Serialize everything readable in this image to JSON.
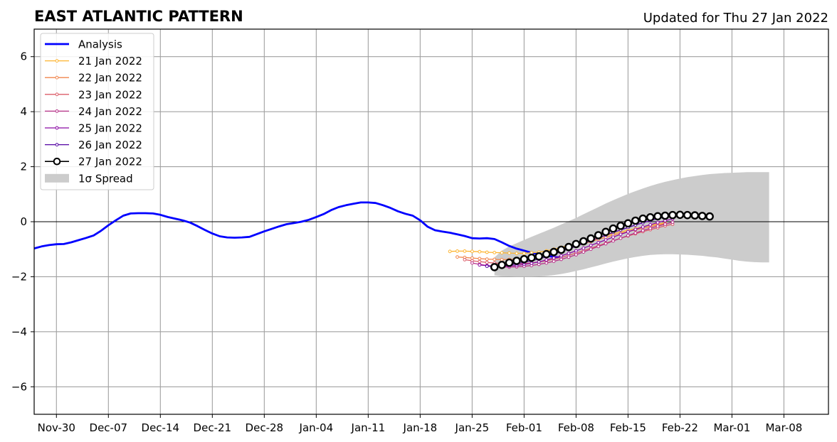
{
  "header": {
    "title": "EAST ATLANTIC PATTERN",
    "updated": "Updated for Thu 27 Jan 2022"
  },
  "chart_data": {
    "type": "line",
    "title": "EAST ATLANTIC PATTERN",
    "subtitle": "Updated for Thu 27 Jan 2022",
    "x_start_date": "2021-11-27",
    "xlim": [
      "2021-11-27",
      "2022-03-14"
    ],
    "ylim": [
      -7,
      7
    ],
    "yticks": [
      -6,
      -4,
      -2,
      0,
      2,
      4,
      6
    ],
    "ytick_labels": [
      "−6",
      "−4",
      "−2",
      "0",
      "2",
      "4",
      "6"
    ],
    "xticks": [
      "2021-11-30",
      "2021-12-07",
      "2021-12-14",
      "2021-12-21",
      "2021-12-28",
      "2022-01-04",
      "2022-01-11",
      "2022-01-18",
      "2022-01-25",
      "2022-02-01",
      "2022-02-08",
      "2022-02-15",
      "2022-02-22",
      "2022-03-01",
      "2022-03-08"
    ],
    "xtick_labels": [
      "Nov-30",
      "Dec-07",
      "Dec-14",
      "Dec-21",
      "Dec-28",
      "Jan-04",
      "Jan-11",
      "Jan-18",
      "Jan-25",
      "Feb-01",
      "Feb-08",
      "Feb-15",
      "Feb-22",
      "Mar-01",
      "Mar-08"
    ],
    "grid": true,
    "legend_position": "top-left",
    "colors": {
      "analysis": "#0000ff",
      "spread": "#cccccc",
      "zero_line": "#000000"
    },
    "legend": [
      {
        "label": "Analysis",
        "kind": "thick",
        "color": "#0000ff"
      },
      {
        "label": "21 Jan 2022",
        "kind": "small",
        "color": "#fdb42f"
      },
      {
        "label": "22 Jan 2022",
        "kind": "small",
        "color": "#f1844b"
      },
      {
        "label": "23 Jan 2022",
        "kind": "small",
        "color": "#db5c68"
      },
      {
        "label": "24 Jan 2022",
        "kind": "small",
        "color": "#b83289"
      },
      {
        "label": "25 Jan 2022",
        "kind": "small",
        "color": "#8b0aa5"
      },
      {
        "label": "26 Jan 2022",
        "kind": "small",
        "color": "#5302a3"
      },
      {
        "label": "27 Jan 2022",
        "kind": "big",
        "color": "#000000"
      },
      {
        "label": "1σ Spread",
        "kind": "patch",
        "color": "#cccccc"
      }
    ],
    "analysis": {
      "name": "Analysis",
      "start": "2021-11-27",
      "values": [
        -0.97,
        -0.9,
        -0.85,
        -0.82,
        -0.81,
        -0.75,
        -0.67,
        -0.59,
        -0.5,
        -0.33,
        -0.13,
        0.05,
        0.22,
        0.3,
        0.31,
        0.31,
        0.3,
        0.25,
        0.17,
        0.11,
        0.05,
        -0.03,
        -0.16,
        -0.3,
        -0.43,
        -0.53,
        -0.57,
        -0.58,
        -0.57,
        -0.55,
        -0.45,
        -0.35,
        -0.26,
        -0.17,
        -0.09,
        -0.05,
        0.0,
        0.07,
        0.17,
        0.28,
        0.42,
        0.53,
        0.6,
        0.65,
        0.7,
        0.7,
        0.68,
        0.6,
        0.5,
        0.38,
        0.29,
        0.22,
        0.05,
        -0.18,
        -0.31,
        -0.36,
        -0.4,
        -0.46,
        -0.52,
        -0.6,
        -0.61,
        -0.6,
        -0.63,
        -0.75,
        -0.88,
        -0.98,
        -1.05,
        -1.13,
        -1.18,
        -1.23,
        -1.28,
        -1.3
      ]
    },
    "forecasts": [
      {
        "name": "21 Jan 2022",
        "start": "2022-01-22",
        "color": "#fdb42f",
        "values": [
          -1.08,
          -1.07,
          -1.07,
          -1.08,
          -1.09,
          -1.11,
          -1.12,
          -1.13,
          -1.14,
          -1.15,
          -1.15,
          -1.13,
          -1.11,
          -1.06,
          -1.0,
          -0.93,
          -0.86,
          -0.79,
          -0.72,
          -0.65,
          -0.58,
          -0.51,
          -0.44,
          -0.37,
          -0.31,
          -0.25,
          -0.19,
          -0.13,
          -0.08,
          -0.04
        ]
      },
      {
        "name": "22 Jan 2022",
        "start": "2022-01-23",
        "color": "#f1844b",
        "values": [
          -1.28,
          -1.3,
          -1.32,
          -1.34,
          -1.36,
          -1.37,
          -1.38,
          -1.37,
          -1.36,
          -1.33,
          -1.28,
          -1.23,
          -1.17,
          -1.1,
          -1.03,
          -0.95,
          -0.88,
          -0.8,
          -0.72,
          -0.64,
          -0.57,
          -0.49,
          -0.42,
          -0.36,
          -0.3,
          -0.24,
          -0.18,
          -0.12,
          -0.07
        ]
      },
      {
        "name": "23 Jan 2022",
        "start": "2022-01-24",
        "color": "#db5c68",
        "values": [
          -1.38,
          -1.42,
          -1.45,
          -1.48,
          -1.5,
          -1.52,
          -1.53,
          -1.53,
          -1.52,
          -1.5,
          -1.46,
          -1.42,
          -1.36,
          -1.3,
          -1.22,
          -1.14,
          -1.05,
          -0.96,
          -0.87,
          -0.78,
          -0.69,
          -0.6,
          -0.52,
          -0.44,
          -0.36,
          -0.29,
          -0.22,
          -0.15,
          -0.09
        ]
      },
      {
        "name": "24 Jan 2022",
        "start": "2022-01-25",
        "color": "#b83289",
        "values": [
          -1.5,
          -1.55,
          -1.59,
          -1.62,
          -1.64,
          -1.65,
          -1.64,
          -1.62,
          -1.59,
          -1.55,
          -1.5,
          -1.44,
          -1.37,
          -1.29,
          -1.2,
          -1.1,
          -1.0,
          -0.9,
          -0.8,
          -0.7,
          -0.6,
          -0.5,
          -0.41,
          -0.32,
          -0.24,
          -0.16,
          -0.09,
          -0.02
        ]
      },
      {
        "name": "25 Jan 2022",
        "start": "2022-01-26",
        "color": "#8b0aa5",
        "values": [
          -1.57,
          -1.6,
          -1.62,
          -1.62,
          -1.61,
          -1.59,
          -1.55,
          -1.51,
          -1.46,
          -1.39,
          -1.32,
          -1.24,
          -1.15,
          -1.06,
          -0.96,
          -0.86,
          -0.76,
          -0.66,
          -0.56,
          -0.46,
          -0.37,
          -0.28,
          -0.19,
          -0.11,
          -0.03,
          0.04,
          0.1
        ]
      },
      {
        "name": "26 Jan 2022",
        "start": "2022-01-27",
        "color": "#5302a3",
        "values": [
          -1.62,
          -1.62,
          -1.6,
          -1.57,
          -1.53,
          -1.48,
          -1.42,
          -1.35,
          -1.27,
          -1.18,
          -1.09,
          -0.99,
          -0.89,
          -0.79,
          -0.69,
          -0.59,
          -0.49,
          -0.39,
          -0.3,
          -0.21,
          -0.12,
          -0.04,
          0.04,
          0.11,
          0.17
        ]
      }
    ],
    "forecast_main": {
      "name": "27 Jan 2022",
      "start": "2022-01-28",
      "color": "#000000",
      "values": [
        -1.65,
        -1.57,
        -1.49,
        -1.42,
        -1.36,
        -1.31,
        -1.26,
        -1.18,
        -1.1,
        -1.02,
        -0.92,
        -0.81,
        -0.71,
        -0.61,
        -0.49,
        -0.37,
        -0.25,
        -0.15,
        -0.06,
        0.04,
        0.11,
        0.16,
        0.2,
        0.22,
        0.24,
        0.25,
        0.24,
        0.23,
        0.21,
        0.19
      ]
    },
    "spread": {
      "label": "1σ Spread",
      "start": "2022-01-28",
      "upper": [
        -1.3,
        -1.05,
        -0.9,
        -0.78,
        -0.66,
        -0.55,
        -0.44,
        -0.33,
        -0.22,
        -0.1,
        0.02,
        0.14,
        0.27,
        0.4,
        0.53,
        0.66,
        0.78,
        0.9,
        1.01,
        1.11,
        1.21,
        1.3,
        1.38,
        1.45,
        1.51,
        1.57,
        1.62,
        1.66,
        1.7,
        1.73,
        1.75,
        1.77,
        1.78,
        1.79,
        1.8,
        1.8,
        1.8,
        1.8
      ],
      "lower": [
        -1.95,
        -1.98,
        -1.99,
        -2.0,
        -2.0,
        -2.0,
        -1.99,
        -1.97,
        -1.94,
        -1.9,
        -1.85,
        -1.79,
        -1.73,
        -1.66,
        -1.59,
        -1.52,
        -1.45,
        -1.39,
        -1.33,
        -1.28,
        -1.24,
        -1.21,
        -1.19,
        -1.18,
        -1.18,
        -1.19,
        -1.2,
        -1.22,
        -1.24,
        -1.27,
        -1.3,
        -1.34,
        -1.38,
        -1.42,
        -1.45,
        -1.47,
        -1.48,
        -1.48
      ]
    }
  }
}
